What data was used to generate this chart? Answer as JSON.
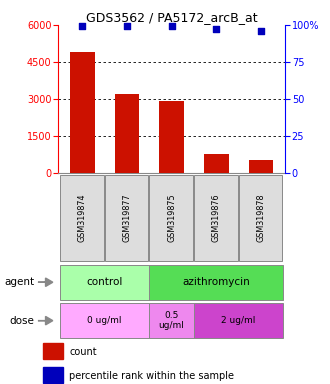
{
  "title": "GDS3562 / PA5172_arcB_at",
  "categories": [
    "GSM319874",
    "GSM319877",
    "GSM319875",
    "GSM319876",
    "GSM319878"
  ],
  "counts": [
    4900,
    3200,
    2900,
    750,
    530
  ],
  "percentiles": [
    99,
    99,
    99,
    97,
    96
  ],
  "bar_color": "#cc1100",
  "dot_color": "#0000bb",
  "ylim_left": [
    0,
    6000
  ],
  "ylim_right": [
    0,
    100
  ],
  "yticks_left": [
    0,
    1500,
    3000,
    4500,
    6000
  ],
  "yticks_right": [
    0,
    25,
    50,
    75,
    100
  ],
  "agent_groups": [
    {
      "label": "control",
      "span": [
        0,
        2
      ],
      "color": "#aaffaa"
    },
    {
      "label": "azithromycin",
      "span": [
        2,
        5
      ],
      "color": "#55dd55"
    }
  ],
  "dose_groups": [
    {
      "label": "0 ug/ml",
      "span": [
        0,
        2
      ],
      "color": "#ffaaff"
    },
    {
      "label": "0.5\nug/ml",
      "span": [
        2,
        3
      ],
      "color": "#ee88ee"
    },
    {
      "label": "2 ug/ml",
      "span": [
        3,
        5
      ],
      "color": "#cc44cc"
    }
  ],
  "legend_count_color": "#cc1100",
  "legend_pct_color": "#0000bb",
  "label_agent": "agent",
  "label_dose": "dose",
  "background_color": "#ffffff",
  "sample_cell_color": "#dddddd",
  "grid_color": "#000000"
}
